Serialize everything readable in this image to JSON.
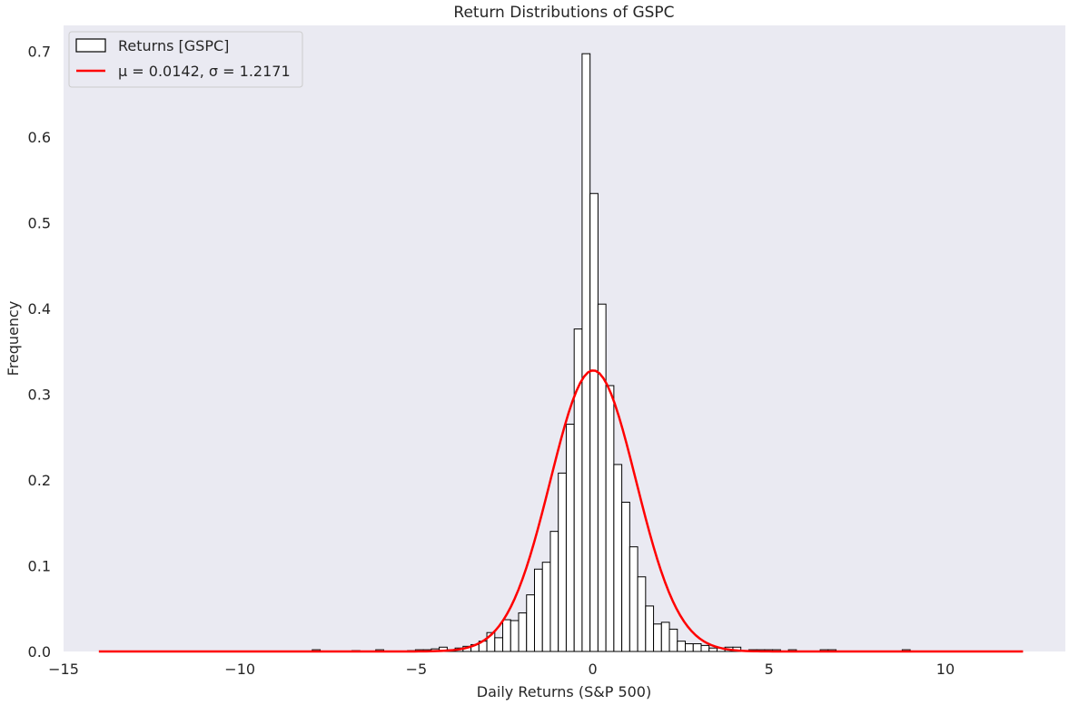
{
  "chart_data": {
    "type": "bar",
    "title": "Return Distributions of GSPC",
    "xlabel": "Daily Returns (S&P 500)",
    "ylabel": "Frequency",
    "xlim": [
      -15.0,
      13.4
    ],
    "ylim": [
      0,
      0.73
    ],
    "xticks": [
      -15,
      -10,
      -5,
      0,
      5,
      10
    ],
    "xtick_labels": [
      "−15",
      "−10",
      "−5",
      "0",
      "5",
      "10"
    ],
    "yticks": [
      0.0,
      0.1,
      0.2,
      0.3,
      0.4,
      0.5,
      0.6,
      0.7
    ],
    "ytick_labels": [
      "0.0",
      "0.1",
      "0.2",
      "0.3",
      "0.4",
      "0.5",
      "0.6",
      "0.7"
    ],
    "grid": false,
    "legend_position": "top-left",
    "colors": {
      "plot_background": "#eaeaf2",
      "bar_fill": "#ffffff",
      "bar_edge": "#000000",
      "fit_line": "#ff0000"
    },
    "histogram": {
      "name": "Returns [GSPC]",
      "bins": [
        {
          "x0": -7.95,
          "x1": -7.725,
          "y": 0.002
        },
        {
          "x0": -6.825,
          "x1": -6.6,
          "y": 0.001
        },
        {
          "x0": -6.15,
          "x1": -5.925,
          "y": 0.002
        },
        {
          "x0": -5.25,
          "x1": -5.025,
          "y": 0.001
        },
        {
          "x0": -5.025,
          "x1": -4.8,
          "y": 0.002
        },
        {
          "x0": -4.8,
          "x1": -4.575,
          "y": 0.002
        },
        {
          "x0": -4.575,
          "x1": -4.35,
          "y": 0.003
        },
        {
          "x0": -4.35,
          "x1": -4.125,
          "y": 0.005
        },
        {
          "x0": -4.125,
          "x1": -3.9,
          "y": 0.002
        },
        {
          "x0": -3.9,
          "x1": -3.675,
          "y": 0.004
        },
        {
          "x0": -3.675,
          "x1": -3.45,
          "y": 0.006
        },
        {
          "x0": -3.45,
          "x1": -3.225,
          "y": 0.008
        },
        {
          "x0": -3.225,
          "x1": -3.0,
          "y": 0.012
        },
        {
          "x0": -3.0,
          "x1": -2.775,
          "y": 0.022
        },
        {
          "x0": -2.775,
          "x1": -2.55,
          "y": 0.016
        },
        {
          "x0": -2.55,
          "x1": -2.325,
          "y": 0.037
        },
        {
          "x0": -2.325,
          "x1": -2.1,
          "y": 0.036
        },
        {
          "x0": -2.1,
          "x1": -1.875,
          "y": 0.045
        },
        {
          "x0": -1.875,
          "x1": -1.65,
          "y": 0.066
        },
        {
          "x0": -1.65,
          "x1": -1.425,
          "y": 0.096
        },
        {
          "x0": -1.425,
          "x1": -1.2,
          "y": 0.104
        },
        {
          "x0": -1.2,
          "x1": -0.975,
          "y": 0.14
        },
        {
          "x0": -0.975,
          "x1": -0.75,
          "y": 0.208
        },
        {
          "x0": -0.75,
          "x1": -0.525,
          "y": 0.265
        },
        {
          "x0": -0.525,
          "x1": -0.3,
          "y": 0.376
        },
        {
          "x0": -0.3,
          "x1": -0.075,
          "y": 0.697
        },
        {
          "x0": -0.075,
          "x1": 0.15,
          "y": 0.534
        },
        {
          "x0": 0.15,
          "x1": 0.375,
          "y": 0.405
        },
        {
          "x0": 0.375,
          "x1": 0.6,
          "y": 0.31
        },
        {
          "x0": 0.6,
          "x1": 0.825,
          "y": 0.218
        },
        {
          "x0": 0.825,
          "x1": 1.05,
          "y": 0.174
        },
        {
          "x0": 1.05,
          "x1": 1.275,
          "y": 0.122
        },
        {
          "x0": 1.275,
          "x1": 1.5,
          "y": 0.087
        },
        {
          "x0": 1.5,
          "x1": 1.725,
          "y": 0.053
        },
        {
          "x0": 1.725,
          "x1": 1.95,
          "y": 0.032
        },
        {
          "x0": 1.95,
          "x1": 2.175,
          "y": 0.034
        },
        {
          "x0": 2.175,
          "x1": 2.4,
          "y": 0.026
        },
        {
          "x0": 2.4,
          "x1": 2.625,
          "y": 0.012
        },
        {
          "x0": 2.625,
          "x1": 2.85,
          "y": 0.009
        },
        {
          "x0": 2.85,
          "x1": 3.075,
          "y": 0.009
        },
        {
          "x0": 3.075,
          "x1": 3.3,
          "y": 0.007
        },
        {
          "x0": 3.3,
          "x1": 3.525,
          "y": 0.004
        },
        {
          "x0": 3.525,
          "x1": 3.75,
          "y": 0.004
        },
        {
          "x0": 3.75,
          "x1": 3.975,
          "y": 0.005
        },
        {
          "x0": 3.975,
          "x1": 4.2,
          "y": 0.005
        },
        {
          "x0": 4.425,
          "x1": 4.65,
          "y": 0.002
        },
        {
          "x0": 4.65,
          "x1": 4.875,
          "y": 0.002
        },
        {
          "x0": 4.875,
          "x1": 5.1,
          "y": 0.002
        },
        {
          "x0": 5.1,
          "x1": 5.325,
          "y": 0.002
        },
        {
          "x0": 5.55,
          "x1": 5.775,
          "y": 0.002
        },
        {
          "x0": 6.45,
          "x1": 6.675,
          "y": 0.002
        },
        {
          "x0": 6.675,
          "x1": 6.9,
          "y": 0.002
        },
        {
          "x0": 8.775,
          "x1": 9.0,
          "y": 0.002
        }
      ]
    },
    "fit": {
      "name": "μ = 0.0142, σ = 1.2171",
      "mu": 0.0142,
      "sigma": 1.2171,
      "x_range": [
        -14,
        12.2
      ]
    }
  }
}
